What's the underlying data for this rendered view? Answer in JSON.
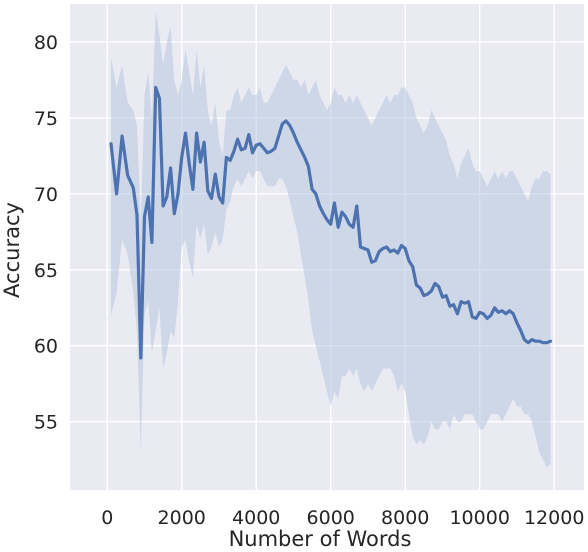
{
  "chart_data": {
    "type": "line",
    "title": "",
    "xlabel": "Number of Words",
    "ylabel": "Accuracy",
    "xlim": [
      -1000,
      12800
    ],
    "ylim": [
      50.5,
      82.5
    ],
    "xticks": [
      0,
      2000,
      4000,
      6000,
      8000,
      10000,
      12000
    ],
    "xtick_labels": [
      "0",
      "2000",
      "4000",
      "6000",
      "8000",
      "10000",
      "12000"
    ],
    "yticks": [
      55,
      60,
      65,
      70,
      75,
      80
    ],
    "ytick_labels": [
      "55",
      "60",
      "65",
      "70",
      "75",
      "80"
    ],
    "grid": true,
    "colors": {
      "background": "#eaeaf2",
      "grid": "#ffffff",
      "line": "#4c72b0",
      "band": "#b7c6e0"
    },
    "series": [
      {
        "x": [
          100,
          250,
          400,
          550,
          700,
          800,
          900,
          1000,
          1100,
          1200,
          1300,
          1400,
          1500,
          1600,
          1700,
          1800,
          1900,
          2000,
          2100,
          2200,
          2300,
          2400,
          2500,
          2600,
          2700,
          2800,
          2900,
          3000,
          3100,
          3200,
          3300,
          3400,
          3500,
          3600,
          3700,
          3800,
          3900,
          4000,
          4100,
          4200,
          4300,
          4400,
          4500,
          4600,
          4700,
          4800,
          4900,
          5000,
          5100,
          5200,
          5300,
          5400,
          5500,
          5600,
          5700,
          5800,
          5900,
          6000,
          6100,
          6200,
          6300,
          6400,
          6500,
          6600,
          6700,
          6800,
          6900,
          7000,
          7100,
          7200,
          7300,
          7400,
          7500,
          7600,
          7700,
          7800,
          7900,
          8000,
          8100,
          8200,
          8300,
          8400,
          8500,
          8600,
          8700,
          8800,
          8900,
          9000,
          9100,
          9200,
          9300,
          9400,
          9500,
          9600,
          9700,
          9800,
          9900,
          10000,
          10100,
          10200,
          10300,
          10400,
          10500,
          10600,
          10700,
          10800,
          10900,
          11000,
          11100,
          11200,
          11300,
          11400,
          11500,
          11600,
          11700,
          11800,
          11900
        ],
        "values": [
          73.3,
          70.0,
          73.8,
          71.2,
          70.4,
          68.6,
          59.2,
          68.5,
          69.8,
          66.8,
          77.0,
          76.3,
          69.2,
          69.8,
          71.7,
          68.7,
          70.0,
          72.4,
          74.0,
          72.0,
          70.3,
          74.0,
          72.1,
          73.4,
          70.2,
          69.7,
          71.3,
          69.8,
          69.4,
          72.4,
          72.2,
          72.8,
          73.6,
          72.9,
          73.0,
          73.9,
          72.7,
          73.2,
          73.3,
          73.0,
          72.7,
          72.8,
          73.0,
          73.8,
          74.6,
          74.8,
          74.5,
          74.0,
          73.4,
          72.9,
          72.4,
          71.8,
          70.3,
          70.0,
          69.2,
          68.7,
          68.3,
          68.0,
          69.4,
          67.8,
          68.8,
          68.5,
          68.0,
          67.8,
          69.2,
          66.5,
          66.4,
          66.3,
          65.5,
          65.6,
          66.2,
          66.4,
          66.5,
          66.2,
          66.3,
          66.1,
          66.6,
          66.4,
          65.6,
          65.2,
          64.0,
          63.8,
          63.3,
          63.4,
          63.6,
          64.1,
          63.9,
          63.2,
          63.3,
          62.6,
          62.7,
          62.1,
          62.9,
          62.8,
          62.9,
          61.9,
          61.8,
          62.2,
          62.1,
          61.8,
          62.0,
          62.5,
          62.2,
          62.3,
          62.1,
          62.3,
          62.1,
          61.5,
          61.0,
          60.4,
          60.2,
          60.4,
          60.3,
          60.3,
          60.2,
          60.2,
          60.3
        ],
        "lower": [
          62.0,
          63.5,
          67.0,
          66.0,
          63.5,
          61.0,
          53.0,
          62.0,
          63.0,
          59.5,
          61.0,
          62.5,
          58.5,
          59.5,
          61.0,
          60.5,
          63.0,
          66.5,
          67.0,
          65.5,
          64.5,
          68.0,
          67.0,
          68.0,
          66.0,
          66.5,
          67.5,
          66.5,
          67.0,
          69.0,
          69.5,
          70.5,
          71.0,
          70.5,
          71.0,
          71.5,
          71.0,
          71.5,
          71.5,
          71.0,
          70.5,
          70.5,
          70.5,
          71.0,
          71.0,
          70.5,
          69.5,
          68.5,
          67.5,
          66.0,
          64.5,
          63.0,
          61.0,
          60.0,
          59.0,
          58.0,
          57.0,
          56.0,
          57.0,
          56.5,
          58.0,
          58.0,
          58.5,
          58.0,
          58.5,
          57.5,
          57.0,
          57.5,
          57.0,
          57.5,
          58.0,
          58.5,
          58.5,
          58.5,
          58.0,
          57.0,
          57.5,
          57.0,
          55.5,
          54.0,
          53.5,
          53.8,
          53.5,
          54.0,
          55.0,
          54.5,
          54.5,
          55.0,
          55.0,
          54.5,
          55.5,
          55.0,
          55.0,
          55.5,
          55.5,
          55.5,
          55.0,
          54.5,
          54.5,
          55.0,
          55.5,
          55.5,
          55.5,
          55.0,
          55.5,
          56.0,
          56.5,
          56.0,
          56.0,
          55.5,
          55.5,
          55.0,
          54.0,
          53.0,
          52.5,
          52.0,
          52.2
        ],
        "upper": [
          79.0,
          77.0,
          78.5,
          76.0,
          75.5,
          74.5,
          68.0,
          76.5,
          78.0,
          75.0,
          82.0,
          80.5,
          78.5,
          80.0,
          81.0,
          77.5,
          76.5,
          77.5,
          79.5,
          78.0,
          76.5,
          79.5,
          77.0,
          78.5,
          75.5,
          74.5,
          76.0,
          73.5,
          72.5,
          75.5,
          75.5,
          76.5,
          77.0,
          76.0,
          76.5,
          77.0,
          76.5,
          76.5,
          77.0,
          76.0,
          76.0,
          76.5,
          77.0,
          77.5,
          78.0,
          78.5,
          78.0,
          77.5,
          77.5,
          77.0,
          77.5,
          76.5,
          77.0,
          77.5,
          76.5,
          76.0,
          75.5,
          76.0,
          77.0,
          76.5,
          76.5,
          76.0,
          76.5,
          76.0,
          76.5,
          76.0,
          75.5,
          75.0,
          74.5,
          75.0,
          75.5,
          76.0,
          76.5,
          76.0,
          76.5,
          76.5,
          77.0,
          77.0,
          76.5,
          76.0,
          75.0,
          74.5,
          74.0,
          74.5,
          75.5,
          75.0,
          74.5,
          74.0,
          73.5,
          72.5,
          72.0,
          71.0,
          72.0,
          72.5,
          73.0,
          72.0,
          71.5,
          71.5,
          71.0,
          70.5,
          71.0,
          71.5,
          71.0,
          71.5,
          71.0,
          71.5,
          71.5,
          71.0,
          70.5,
          70.0,
          69.5,
          70.5,
          71.0,
          71.0,
          71.5,
          71.5,
          71.3
        ]
      }
    ]
  }
}
